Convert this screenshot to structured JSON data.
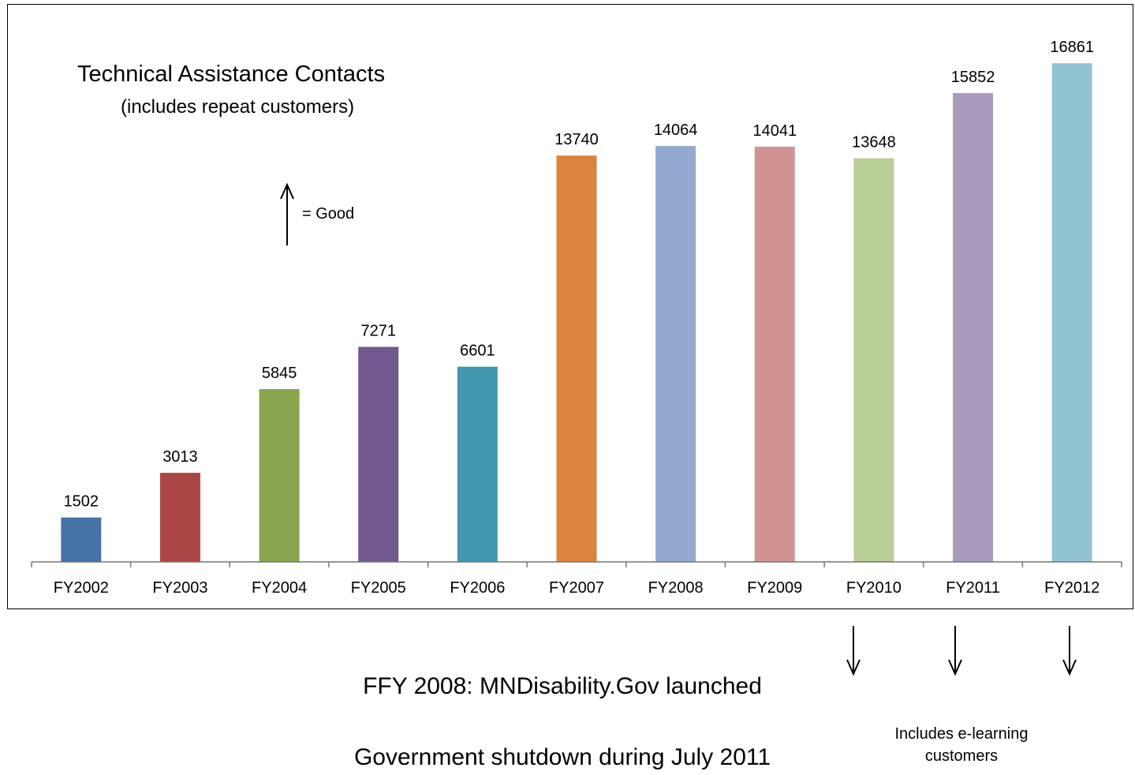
{
  "chart_data": {
    "type": "bar",
    "title": "Technical  Assistance Contacts",
    "subtitle": "(includes repeat customers)",
    "categories": [
      "FY2002",
      "FY2003",
      "FY2004",
      "FY2005",
      "FY2006",
      "FY2007",
      "FY2008",
      "FY2009",
      "FY2010",
      "FY2011",
      "FY2012"
    ],
    "values": [
      1502,
      3013,
      5845,
      7271,
      6601,
      13740,
      14064,
      14041,
      13648,
      15852,
      16861
    ],
    "colors": [
      "#4572a7",
      "#aa4643",
      "#89a54e",
      "#71588f",
      "#4198af",
      "#db843d",
      "#93a9cf",
      "#d19392",
      "#b9cd96",
      "#a99bbd",
      "#92c3d3"
    ],
    "xlabel": "",
    "ylabel": "",
    "ylim": [
      0,
      19000
    ],
    "grid": false,
    "legend": "none"
  },
  "annotations": {
    "good_indicator": "= Good",
    "note_2008": "FFY 2008: MNDisability.Gov launched",
    "note_shutdown": "Government shutdown during July 2011",
    "note_elearning_line1": "Includes e-learning",
    "note_elearning_line2": "customers"
  }
}
